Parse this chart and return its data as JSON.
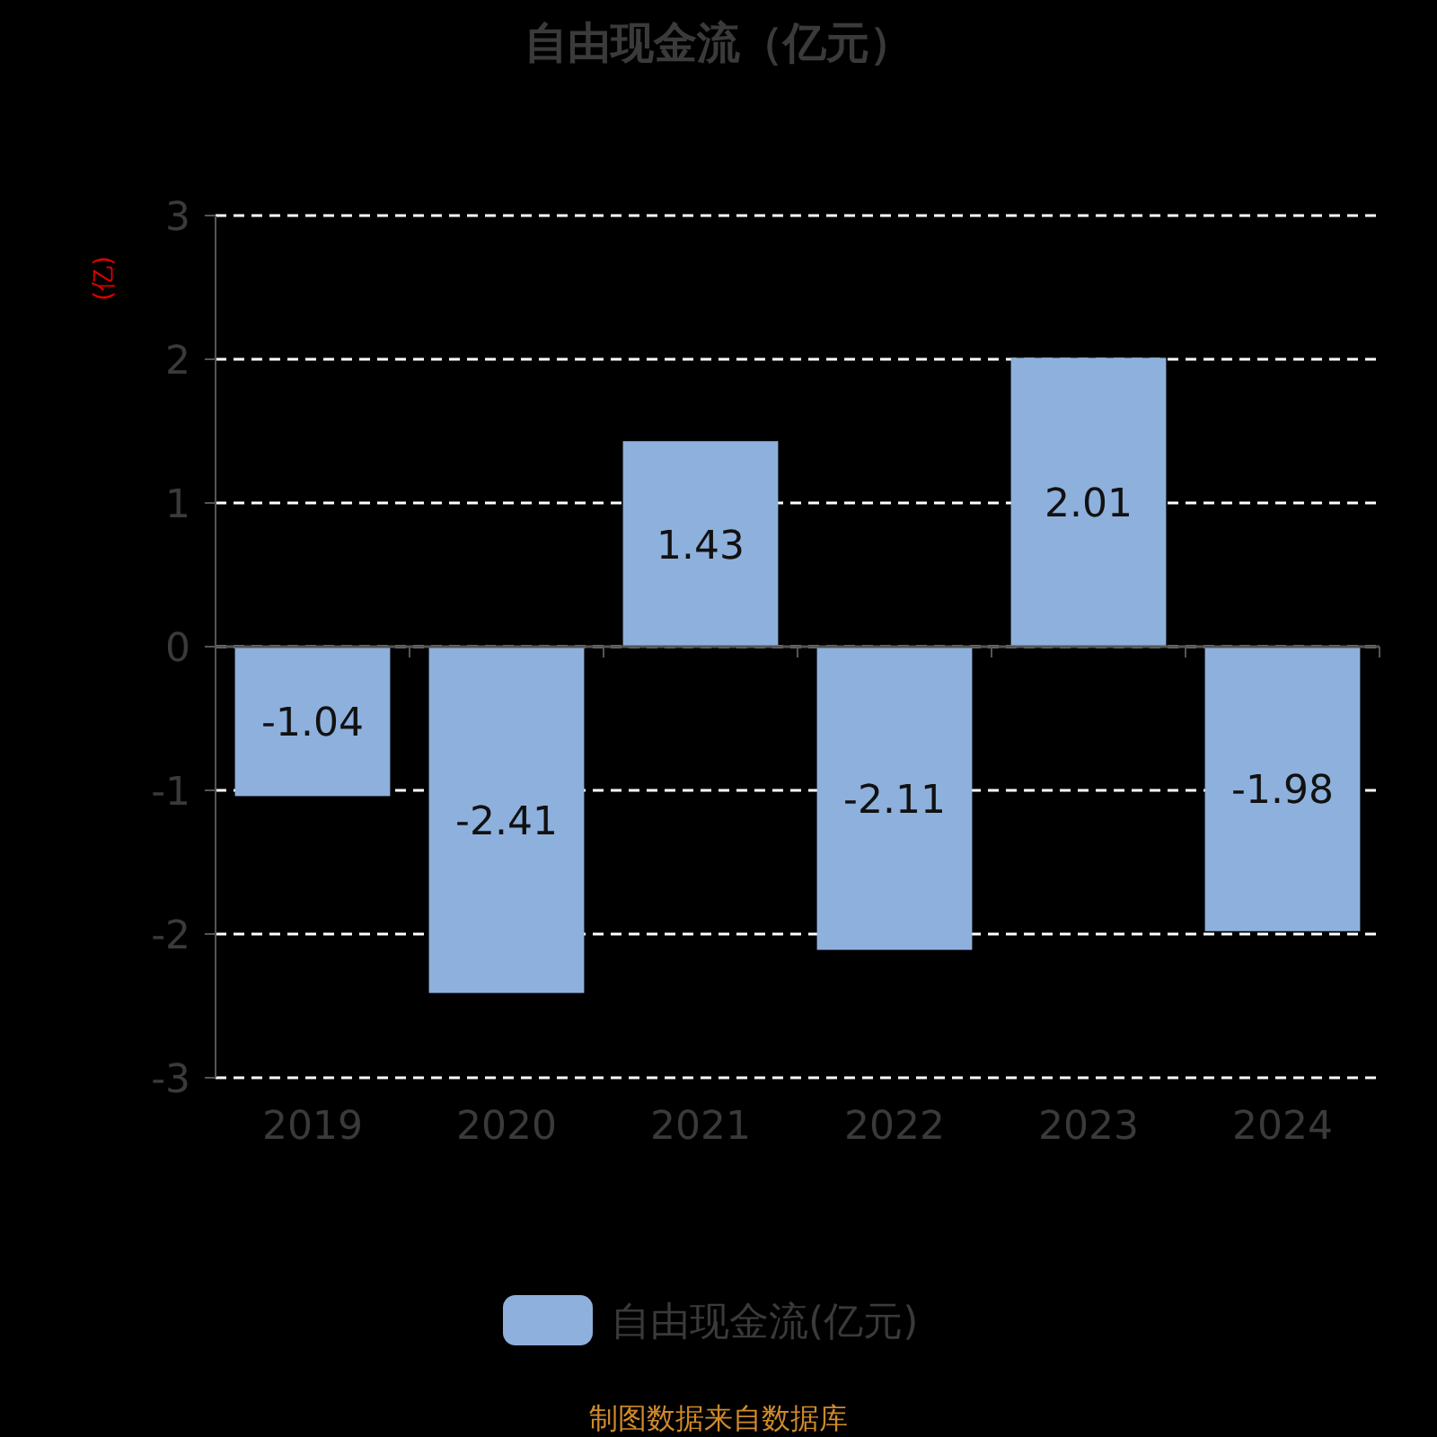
{
  "chart_data": {
    "type": "bar",
    "title": "自由现金流（亿元）",
    "ylabel": "(亿)",
    "categories": [
      "2019",
      "2020",
      "2021",
      "2022",
      "2023",
      "2024"
    ],
    "series": [
      {
        "name": "自由现金流(亿元)",
        "color": "#8eb0dc",
        "values": [
          -1.04,
          -2.41,
          1.43,
          -2.11,
          2.01,
          -1.98
        ]
      }
    ],
    "ylim": [
      -3,
      3
    ],
    "yticks": [
      -3,
      -2,
      -1,
      0,
      1,
      2,
      3
    ],
    "grid": "y",
    "legend": "bottom",
    "data_labels": true,
    "annotations": [
      "制图数据来自数据库"
    ]
  }
}
